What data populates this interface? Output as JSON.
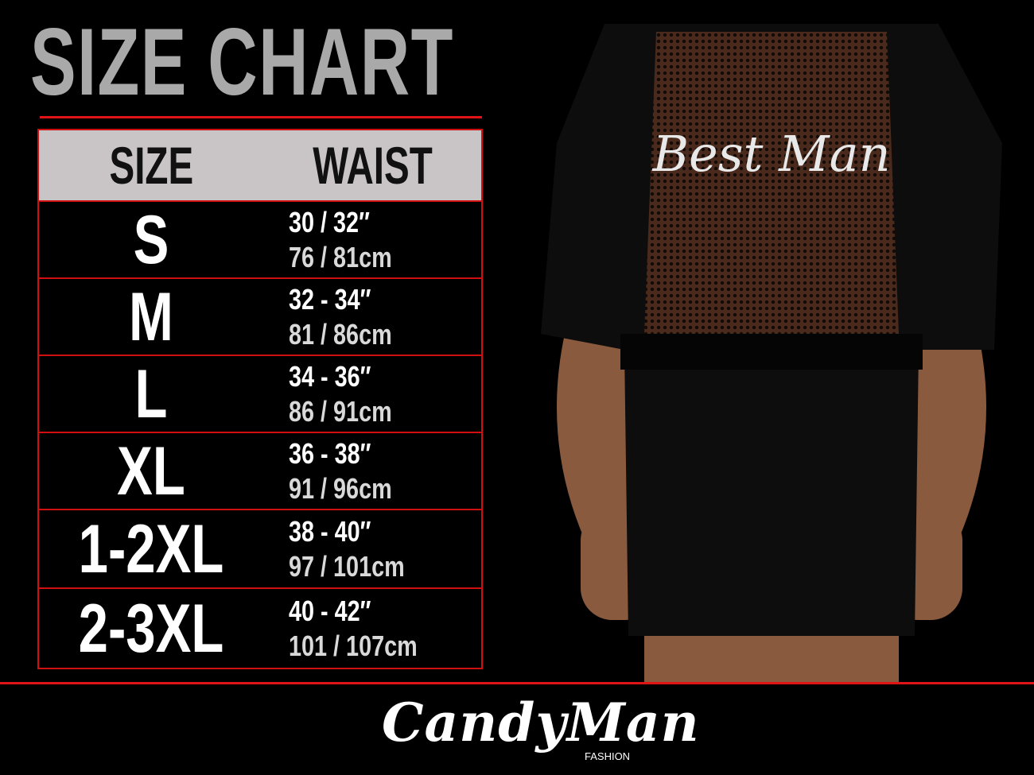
{
  "title": "SIZE CHART",
  "table": {
    "headers": [
      "SIZE",
      "WAIST"
    ],
    "rows": [
      {
        "size": "S",
        "inches": "30 / 32″",
        "cm": "76 / 81cm"
      },
      {
        "size": "M",
        "inches": "32 - 34″",
        "cm": "81 / 86cm"
      },
      {
        "size": "L",
        "inches": "34 - 36″",
        "cm": "86 / 91cm"
      },
      {
        "size": "XL",
        "inches": "36 - 38″",
        "cm": "91 / 96cm"
      },
      {
        "size": "1-2XL",
        "inches": "38 - 40″",
        "cm": "97 / 101cm"
      },
      {
        "size": "2-3XL",
        "inches": "40 - 42″",
        "cm": "101 / 107cm"
      }
    ]
  },
  "product_print": "Best Man",
  "brand": {
    "name": "CandyMan",
    "sub": "FASHION"
  },
  "colors": {
    "accent": "#e01414",
    "header_bg": "#c9c5c6",
    "title": "#a9a9a9"
  }
}
